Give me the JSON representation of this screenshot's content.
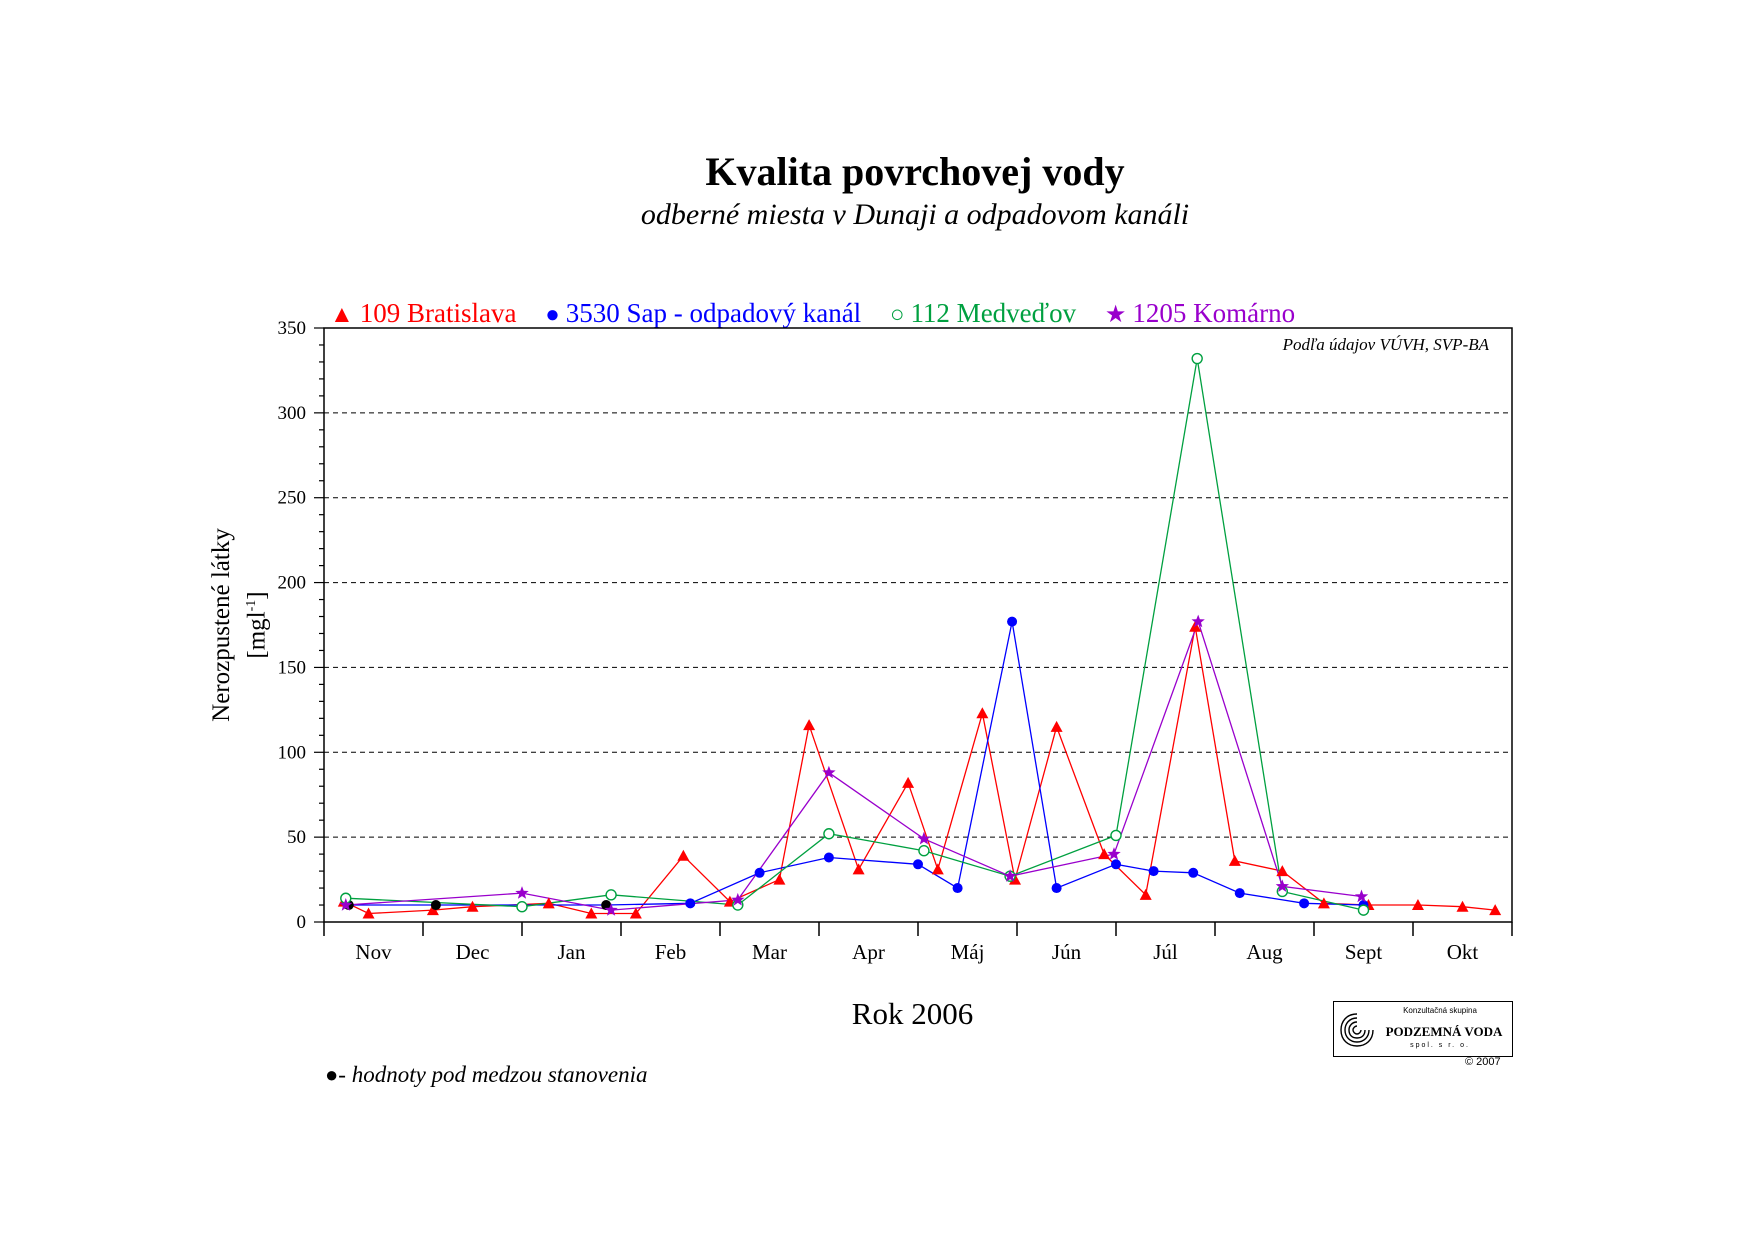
{
  "title": "Kvalita povrchovej vody",
  "subtitle": "odberné miesta v Dunaji a odpadovom kanáli",
  "source_note": "Podľa údajov VÚVH, SVP-BA",
  "footnote": {
    "marker": "●",
    "text": "- hodnoty pod medzou stanovenia"
  },
  "logo": {
    "line1": "Konzultačná skupina",
    "line2": "PODZEMNÁ VODA",
    "line3": "spol. s r. o.",
    "copyright": "© 2007"
  },
  "legend": [
    {
      "marker": "▲",
      "label": "109 Bratislava",
      "color": "#ff0000"
    },
    {
      "marker": "●",
      "label": "3530 Sap - odpadový kanál",
      "color": "#0000ff"
    },
    {
      "marker": "○",
      "label": "112 Medveďov",
      "color": "#00a040"
    },
    {
      "marker": "★",
      "label": "1205 Komárno",
      "color": "#9900cc"
    }
  ],
  "chart_data": {
    "type": "line",
    "title": "Kvalita povrchovej vody",
    "subtitle": "odberné miesta v Dunaji a odpadovom kanáli",
    "xlabel": "Rok 2006",
    "ylabel_line1": "Nerozpustené látky",
    "ylabel_unit": "[mgl",
    "ylabel_unit_sup": "-1",
    "ylabel_unit_close": "]",
    "ylim": [
      0,
      350
    ],
    "yticks": [
      0,
      50,
      100,
      150,
      200,
      250,
      300,
      350
    ],
    "y_gridlines": "dashed",
    "x_domain_months": [
      0,
      12
    ],
    "month_labels": [
      "Nov",
      "Dec",
      "Jan",
      "Feb",
      "Mar",
      "Apr",
      "Máj",
      "Jún",
      "Júl",
      "Aug",
      "Sept",
      "Okt"
    ],
    "below_detection_color": "#000000",
    "series": [
      {
        "name": "109 Bratislava",
        "color": "#ff0000",
        "marker": "triangle",
        "x": [
          0.2,
          0.45,
          1.1,
          1.5,
          2.27,
          2.7,
          3.15,
          3.63,
          4.1,
          4.6,
          4.9,
          5.4,
          5.9,
          6.2,
          6.65,
          6.98,
          7.4,
          7.88,
          8.3,
          8.8,
          9.2,
          9.68,
          10.1,
          10.55,
          11.05,
          11.5,
          11.83
        ],
        "y": [
          12,
          5,
          7,
          9,
          11,
          5,
          5,
          39,
          12,
          25,
          116,
          31,
          82,
          31,
          123,
          25,
          115,
          40,
          16,
          174,
          36,
          30,
          11,
          10,
          10,
          9,
          7
        ],
        "below_detection": []
      },
      {
        "name": "3530 Sap - odpadový kanál",
        "color": "#0000ff",
        "marker": "circle",
        "x": [
          0.25,
          1.13,
          2.85,
          3.7,
          4.4,
          5.1,
          6.0,
          6.4,
          6.95,
          7.4,
          8.0,
          8.38,
          8.78,
          9.25,
          9.9,
          10.5
        ],
        "y": [
          10,
          10,
          10,
          11,
          29,
          38,
          34,
          20,
          177,
          20,
          34,
          30,
          29,
          17,
          11,
          10
        ],
        "below_detection": [
          0,
          1,
          2
        ]
      },
      {
        "name": "112 Medveďov",
        "color": "#00a040",
        "marker": "open-circle",
        "x": [
          0.22,
          2.0,
          2.9,
          4.18,
          5.1,
          6.06,
          6.93,
          8.0,
          8.82,
          9.68,
          10.5
        ],
        "y": [
          14,
          9,
          16,
          10,
          52,
          42,
          27,
          51,
          332,
          18,
          7
        ],
        "below_detection": []
      },
      {
        "name": "1205 Komárno",
        "color": "#9900cc",
        "marker": "star",
        "x": [
          0.22,
          2.0,
          2.9,
          4.18,
          5.1,
          6.06,
          6.93,
          7.98,
          8.83,
          9.68,
          10.48
        ],
        "y": [
          10,
          17,
          7,
          13,
          88,
          49,
          27,
          40,
          177,
          21,
          15
        ],
        "below_detection": []
      }
    ]
  }
}
